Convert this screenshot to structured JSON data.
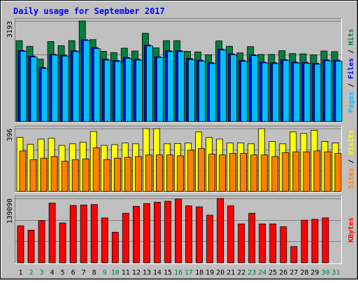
{
  "chart_data": {
    "type": "bar",
    "title": "Daily usage for September 2017",
    "categories": [
      "1",
      "2",
      "3",
      "4",
      "5",
      "6",
      "7",
      "8",
      "9",
      "10",
      "11",
      "12",
      "13",
      "14",
      "15",
      "16",
      "17",
      "18",
      "19",
      "20",
      "21",
      "22",
      "23",
      "24",
      "25",
      "26",
      "27",
      "28",
      "29",
      "30",
      "31"
    ],
    "weekend_days": [
      2,
      3,
      9,
      10,
      16,
      17,
      23,
      24,
      30,
      31
    ],
    "panels": [
      {
        "id": "pages-files-hits",
        "axis_max_label": "3193",
        "ylim": [
          0,
          3193
        ],
        "ylabel_parts": [
          "Pages",
          "Files",
          "Hits"
        ],
        "series": [
          {
            "name": "Hits",
            "color": "#008040",
            "values": [
              2570,
              2390,
              1980,
              2540,
              2410,
              2570,
              3193,
              2600,
              2230,
              2190,
              2330,
              2240,
              2800,
              2340,
              2570,
              2570,
              2230,
              2210,
              2120,
              2560,
              2390,
              2180,
              2380,
              2130,
              2130,
              2250,
              2160,
              2150,
              2120,
              2240,
              2220
            ]
          },
          {
            "name": "Files",
            "color": "#0000ff",
            "values": [
              2260,
              2080,
              1720,
              2140,
              2110,
              2250,
              2600,
              2350,
              1980,
              1940,
              2040,
              1980,
              2430,
              2060,
              2250,
              2250,
              2000,
              1950,
              1870,
              2300,
              2150,
              1940,
              2120,
              1890,
              1870,
              1970,
              1890,
              1880,
              1850,
              1960,
              1950
            ]
          },
          {
            "name": "Pages",
            "color": "#00c0ff",
            "values": [
              2230,
              2050,
              1680,
              2110,
              2080,
              2220,
              2570,
              2320,
              1950,
              1910,
              2010,
              1950,
              2400,
              2030,
              2220,
              2220,
              1970,
              1920,
              1840,
              2270,
              2120,
              1910,
              2090,
              1860,
              1840,
              1940,
              1860,
              1850,
              1820,
              1930,
              1920
            ]
          }
        ]
      },
      {
        "id": "visits-sites",
        "axis_max_label": "396",
        "ylim": [
          0,
          396
        ],
        "ylabel_parts": [
          "Sites",
          "Visits"
        ],
        "series": [
          {
            "name": "Visits",
            "color": "#ffff00",
            "values": [
              340,
              298,
              330,
              335,
              290,
              300,
              310,
              378,
              290,
              295,
              305,
              300,
              396,
              395,
              300,
              302,
              305,
              375,
              340,
              330,
              305,
              305,
              300,
              395,
              315,
              300,
              375,
              365,
              385,
              315,
              305
            ]
          },
          {
            "name": "Sites",
            "color": "#ff8000",
            "values": [
              255,
              200,
              210,
              220,
              190,
              200,
              205,
              275,
              200,
              210,
              215,
              220,
              230,
              230,
              230,
              225,
              260,
              270,
              235,
              230,
              240,
              240,
              230,
              230,
              220,
              245,
              250,
              250,
              255,
              250,
              240
            ]
          }
        ]
      },
      {
        "id": "kbytes",
        "axis_max_label": "139090",
        "ylim": [
          0,
          139090
        ],
        "ylabel_parts": [
          "KBytes"
        ],
        "series": [
          {
            "name": "KBytes",
            "color": "#ff0000",
            "values": [
              80000,
              70500,
              91500,
              129000,
              86000,
              124000,
              125000,
              126000,
              97000,
              66000,
              107000,
              122000,
              128000,
              131000,
              133000,
              138000,
              123000,
              121000,
              103000,
              139090,
              123000,
              84000,
              107000,
              84000,
              84000,
              78000,
              35000,
              92000,
              94000,
              97000,
              0
            ]
          }
        ]
      }
    ]
  }
}
